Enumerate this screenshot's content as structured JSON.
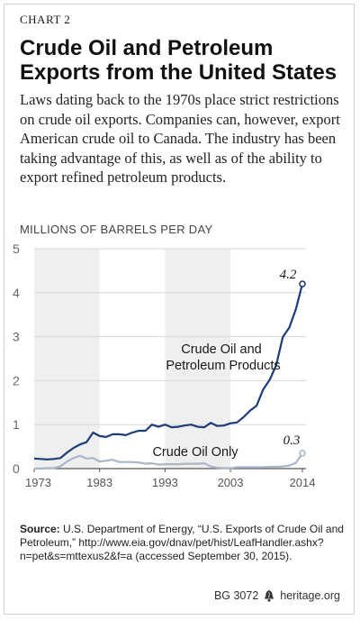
{
  "header": {
    "chart_tag": "CHART 2",
    "title": "Crude Oil and Petroleum Exports from the United States",
    "subtitle": "Laws dating back to the 1970s place strict restrictions on crude oil exports. Companies can, however, export American crude oil to Canada. The industry has been taking advantage of this, as well as of the ability to export refined petroleum products."
  },
  "chart_data": {
    "type": "line",
    "ylabel": "MILLIONS OF BARRELS PER DAY",
    "ylim": [
      0,
      5
    ],
    "xlim": [
      1973,
      2014
    ],
    "yticks": [
      0,
      1,
      2,
      3,
      4,
      5
    ],
    "xticks": [
      1973,
      1983,
      1993,
      2003,
      2014
    ],
    "shaded_bands": [
      [
        1973,
        1983
      ],
      [
        1993,
        2003
      ]
    ],
    "grid": true,
    "colors": {
      "primary": "#1d3c78",
      "secondary": "#a9b7c9",
      "band": "#efefef",
      "grid": "#d8d8d8",
      "axis": "#555555"
    },
    "series": [
      {
        "name": "Crude Oil and Petroleum Products",
        "end_label": "4.2",
        "x": [
          1973,
          1974,
          1975,
          1976,
          1977,
          1978,
          1979,
          1980,
          1981,
          1982,
          1983,
          1984,
          1985,
          1986,
          1987,
          1988,
          1989,
          1990,
          1991,
          1992,
          1993,
          1994,
          1995,
          1996,
          1997,
          1998,
          1999,
          2000,
          2001,
          2002,
          2003,
          2004,
          2005,
          2006,
          2007,
          2008,
          2009,
          2010,
          2011,
          2012,
          2013,
          2014
        ],
        "values": [
          0.23,
          0.22,
          0.21,
          0.22,
          0.24,
          0.36,
          0.47,
          0.55,
          0.6,
          0.82,
          0.74,
          0.72,
          0.78,
          0.78,
          0.76,
          0.82,
          0.86,
          0.86,
          1.0,
          0.95,
          1.0,
          0.94,
          0.95,
          0.98,
          1.0,
          0.95,
          0.94,
          1.04,
          0.97,
          0.98,
          1.03,
          1.05,
          1.17,
          1.32,
          1.43,
          1.8,
          2.02,
          2.35,
          2.99,
          3.21,
          3.62,
          4.2
        ]
      },
      {
        "name": "Crude Oil Only",
        "end_label": "0.3",
        "x": [
          1973,
          1974,
          1975,
          1976,
          1977,
          1978,
          1979,
          1980,
          1981,
          1982,
          1983,
          1984,
          1985,
          1986,
          1987,
          1988,
          1989,
          1990,
          1991,
          1992,
          1993,
          1994,
          1995,
          1996,
          1997,
          1998,
          1999,
          2000,
          2001,
          2002,
          2003,
          2004,
          2005,
          2006,
          2007,
          2008,
          2009,
          2010,
          2011,
          2012,
          2013,
          2014
        ],
        "values": [
          0.0,
          0.0,
          0.01,
          0.01,
          0.05,
          0.16,
          0.24,
          0.29,
          0.23,
          0.24,
          0.16,
          0.18,
          0.2,
          0.15,
          0.15,
          0.15,
          0.14,
          0.11,
          0.12,
          0.09,
          0.1,
          0.1,
          0.1,
          0.11,
          0.11,
          0.11,
          0.12,
          0.05,
          0.02,
          0.01,
          0.01,
          0.03,
          0.03,
          0.03,
          0.03,
          0.03,
          0.04,
          0.04,
          0.05,
          0.07,
          0.13,
          0.35
        ]
      }
    ]
  },
  "source": {
    "label": "Source:",
    "text": "U.S. Department of Energy, “U.S. Exports of Crude Oil and Petroleum,” http://www.eia.gov/dnav/pet/hist/LeafHandler.ashx?n=pet&s=mttexus2&f=a (accessed September 30, 2015)."
  },
  "footer": {
    "report_id": "BG 3072",
    "site": "heritage.org",
    "icon": "liberty-bell-icon"
  }
}
